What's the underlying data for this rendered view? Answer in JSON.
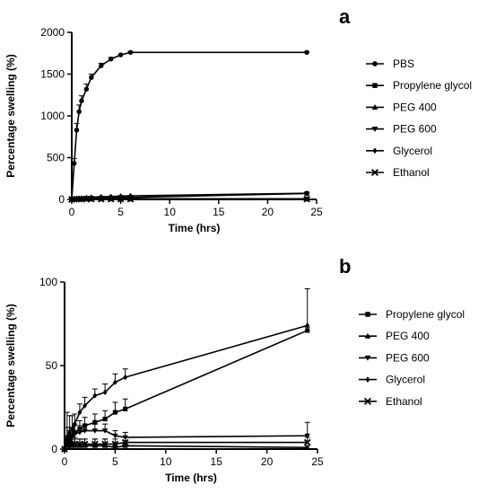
{
  "chart_data": [
    {
      "panel": "a",
      "type": "line",
      "xlabel": "Time (hrs)",
      "ylabel": "Percentage swelling (%)",
      "xlim": [
        0,
        25
      ],
      "ylim": [
        0,
        2000
      ],
      "xticks": [
        0,
        5,
        10,
        15,
        20,
        25
      ],
      "yticks": [
        0,
        500,
        1000,
        1500,
        2000
      ],
      "legend_position": "right",
      "series": [
        {
          "name": "PBS",
          "marker": "circle",
          "x": [
            0,
            0.25,
            0.5,
            0.75,
            1,
            1.5,
            2,
            3,
            4,
            5,
            6,
            24
          ],
          "y": [
            0,
            430,
            830,
            1050,
            1180,
            1320,
            1460,
            1600,
            1680,
            1730,
            1760,
            1760
          ],
          "err": [
            0,
            60,
            80,
            80,
            60,
            60,
            40,
            30,
            20,
            10,
            10,
            10
          ]
        },
        {
          "name": "Propylene glycol",
          "marker": "square",
          "x": [
            0,
            0.25,
            0.5,
            0.75,
            1,
            1.5,
            2,
            3,
            4,
            5,
            6,
            24
          ],
          "y": [
            0,
            3,
            5,
            8,
            10,
            12,
            14,
            16,
            18,
            22,
            24,
            71
          ],
          "err": [
            0,
            2,
            2,
            3,
            3,
            3,
            4,
            4,
            5,
            5,
            5,
            5
          ]
        },
        {
          "name": "PEG 400",
          "marker": "triangle-up",
          "x": [
            0,
            0.25,
            0.5,
            0.75,
            1,
            1.5,
            2,
            3,
            4,
            5,
            6,
            24
          ],
          "y": [
            0,
            2,
            3,
            2,
            2,
            2,
            2,
            2,
            2,
            1,
            2,
            1
          ],
          "err": [
            0,
            2,
            2,
            2,
            2,
            2,
            2,
            2,
            2,
            2,
            2,
            2
          ]
        },
        {
          "name": "PEG 600",
          "marker": "triangle-down",
          "x": [
            0,
            0.25,
            0.5,
            0.75,
            1,
            1.5,
            2,
            3,
            4,
            5,
            6,
            24
          ],
          "y": [
            0,
            5,
            7,
            8,
            9,
            10,
            11,
            11,
            11,
            8,
            7,
            8
          ],
          "err": [
            0,
            2,
            2,
            3,
            3,
            3,
            3,
            3,
            3,
            3,
            3,
            3
          ]
        },
        {
          "name": "Glycerol",
          "marker": "diamond",
          "x": [
            0,
            0.25,
            0.5,
            0.75,
            1,
            1.5,
            2,
            3,
            4,
            5,
            6,
            24
          ],
          "y": [
            0,
            7,
            10,
            12,
            15,
            22,
            26,
            32,
            34,
            40,
            43,
            74
          ],
          "err": [
            0,
            3,
            3,
            4,
            4,
            5,
            5,
            5,
            5,
            5,
            5,
            10
          ]
        },
        {
          "name": "Ethanol",
          "marker": "x",
          "x": [
            0,
            0.25,
            0.5,
            0.75,
            1,
            1.5,
            2,
            3,
            4,
            5,
            6,
            24
          ],
          "y": [
            0,
            2,
            3,
            3,
            3,
            3,
            3,
            3,
            3,
            3,
            4,
            4
          ],
          "err": [
            0,
            2,
            2,
            2,
            2,
            2,
            2,
            2,
            2,
            2,
            2,
            2
          ]
        }
      ]
    },
    {
      "panel": "b",
      "type": "line",
      "xlabel": "Time (hrs)",
      "ylabel": "Percentage swelling (%)",
      "xlim": [
        0,
        25
      ],
      "ylim": [
        0,
        100
      ],
      "xticks": [
        0,
        5,
        10,
        15,
        20,
        25
      ],
      "yticks": [
        0,
        50,
        100
      ],
      "legend_position": "right",
      "series": [
        {
          "name": "Propylene glycol",
          "marker": "square",
          "x": [
            0,
            0.25,
            0.5,
            0.75,
            1,
            1.5,
            2,
            3,
            4,
            5,
            6,
            24
          ],
          "y": [
            0,
            3,
            5,
            8,
            10,
            12,
            14,
            16,
            18,
            22,
            24,
            71
          ],
          "err": [
            0,
            3,
            4,
            4,
            5,
            5,
            5,
            5,
            5,
            6,
            6,
            2
          ]
        },
        {
          "name": "PEG 400",
          "marker": "triangle-up",
          "x": [
            0,
            0.25,
            0.5,
            0.75,
            1,
            1.5,
            2,
            3,
            4,
            5,
            6,
            24
          ],
          "y": [
            0,
            2,
            3,
            2,
            2,
            2,
            2,
            2,
            2,
            1,
            2,
            1
          ],
          "err": [
            0,
            6,
            8,
            6,
            5,
            4,
            4,
            4,
            4,
            3,
            3,
            1
          ]
        },
        {
          "name": "PEG 600",
          "marker": "triangle-down",
          "x": [
            0,
            0.25,
            0.5,
            0.75,
            1,
            1.5,
            2,
            3,
            4,
            5,
            6,
            24
          ],
          "y": [
            0,
            5,
            7,
            8,
            9,
            10,
            11,
            11,
            11,
            8,
            7,
            8
          ],
          "err": [
            0,
            8,
            6,
            5,
            5,
            4,
            4,
            4,
            4,
            3,
            3,
            8
          ]
        },
        {
          "name": "Glycerol",
          "marker": "diamond",
          "x": [
            0,
            0.25,
            0.5,
            0.75,
            1,
            1.5,
            2,
            3,
            4,
            5,
            6,
            24
          ],
          "y": [
            0,
            7,
            10,
            12,
            15,
            22,
            26,
            32,
            34,
            40,
            43,
            74
          ],
          "err": [
            0,
            15,
            10,
            8,
            6,
            5,
            5,
            4,
            5,
            5,
            5,
            22
          ]
        },
        {
          "name": "Ethanol",
          "marker": "x",
          "x": [
            0,
            0.25,
            0.5,
            0.75,
            1,
            1.5,
            2,
            3,
            4,
            5,
            6,
            24
          ],
          "y": [
            0,
            2,
            3,
            3,
            3,
            3,
            3,
            3,
            3,
            3,
            4,
            4
          ],
          "err": [
            0,
            4,
            4,
            3,
            3,
            3,
            3,
            3,
            3,
            3,
            3,
            3
          ]
        }
      ]
    }
  ]
}
